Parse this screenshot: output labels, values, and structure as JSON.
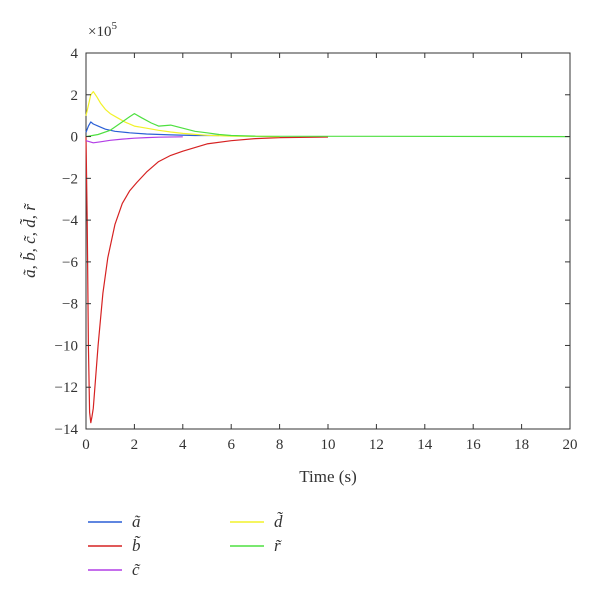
{
  "chart_data": {
    "type": "line",
    "title": "",
    "xlabel": "Time (s)",
    "ylabel": "ã, b̃, c̃, d̃, r̃",
    "exponent_label": "×10",
    "exponent_power": "5",
    "xlim": [
      0,
      20
    ],
    "ylim": [
      -14,
      4
    ],
    "x_ticks": [
      0,
      2,
      4,
      6,
      8,
      10,
      12,
      14,
      16,
      18,
      20
    ],
    "y_ticks": [
      4,
      2,
      0,
      -2,
      -4,
      -6,
      -8,
      -10,
      -12,
      -14
    ],
    "x_tick_labels": [
      "0",
      "2",
      "4",
      "6",
      "8",
      "10",
      "12",
      "14",
      "16",
      "18",
      "20"
    ],
    "y_tick_labels": [
      "4",
      "2",
      "0",
      "−2",
      "−4",
      "−6",
      "−8",
      "−10",
      "−12",
      "−14"
    ],
    "grid": false,
    "legend_position": "bottom",
    "series": [
      {
        "name": "ã",
        "color": "#2a5fd6",
        "x": [
          0,
          0.1,
          0.2,
          0.3,
          0.5,
          0.8,
          1.2,
          1.8,
          2.5,
          3.5,
          4.5,
          5.5
        ],
        "y": [
          0.2,
          0.5,
          0.7,
          0.6,
          0.5,
          0.35,
          0.25,
          0.18,
          0.12,
          0.08,
          0.05,
          0.05
        ]
      },
      {
        "name": "b̃",
        "color": "#d62222",
        "x": [
          0,
          0.05,
          0.1,
          0.15,
          0.2,
          0.25,
          0.3,
          0.4,
          0.5,
          0.7,
          0.9,
          1.2,
          1.5,
          1.8,
          2.1,
          2.5,
          3.0,
          3.5,
          4.0,
          5.0,
          6.0,
          7.0,
          8.0,
          10.0
        ],
        "y": [
          0,
          -4,
          -10,
          -13.2,
          -13.7,
          -13.4,
          -13.0,
          -11.5,
          -10.0,
          -7.5,
          -5.8,
          -4.2,
          -3.2,
          -2.6,
          -2.2,
          -1.7,
          -1.2,
          -0.9,
          -0.7,
          -0.35,
          -0.2,
          -0.1,
          -0.05,
          -0.02
        ]
      },
      {
        "name": "c̃",
        "color": "#b23ee6",
        "x": [
          0,
          0.3,
          0.6,
          1.0,
          1.5,
          2.0,
          2.5,
          3.0,
          4.0
        ],
        "y": [
          -0.2,
          -0.3,
          -0.25,
          -0.18,
          -0.12,
          -0.08,
          -0.05,
          -0.03,
          -0.01
        ]
      },
      {
        "name": "d̃",
        "color": "#f2f22a",
        "x": [
          0,
          0.2,
          0.3,
          0.45,
          0.6,
          0.8,
          1.0,
          1.3,
          1.6,
          2.0,
          2.5,
          3.0,
          3.5,
          4.0,
          5.0,
          6.0,
          8.0
        ],
        "y": [
          1.0,
          2.0,
          2.15,
          1.9,
          1.6,
          1.3,
          1.1,
          0.9,
          0.7,
          0.5,
          0.4,
          0.3,
          0.22,
          0.15,
          0.06,
          0.02,
          0
        ]
      },
      {
        "name": "r̃",
        "color": "#4ee040",
        "x": [
          0,
          0.5,
          1.0,
          1.5,
          1.8,
          2.0,
          2.3,
          2.7,
          3.0,
          3.5,
          4.0,
          4.5,
          5.0,
          5.5,
          6.0,
          7.0,
          20.0
        ],
        "y": [
          0,
          0.1,
          0.3,
          0.7,
          0.95,
          1.1,
          0.9,
          0.65,
          0.5,
          0.55,
          0.4,
          0.25,
          0.18,
          0.1,
          0.05,
          0.02,
          0
        ]
      }
    ]
  }
}
